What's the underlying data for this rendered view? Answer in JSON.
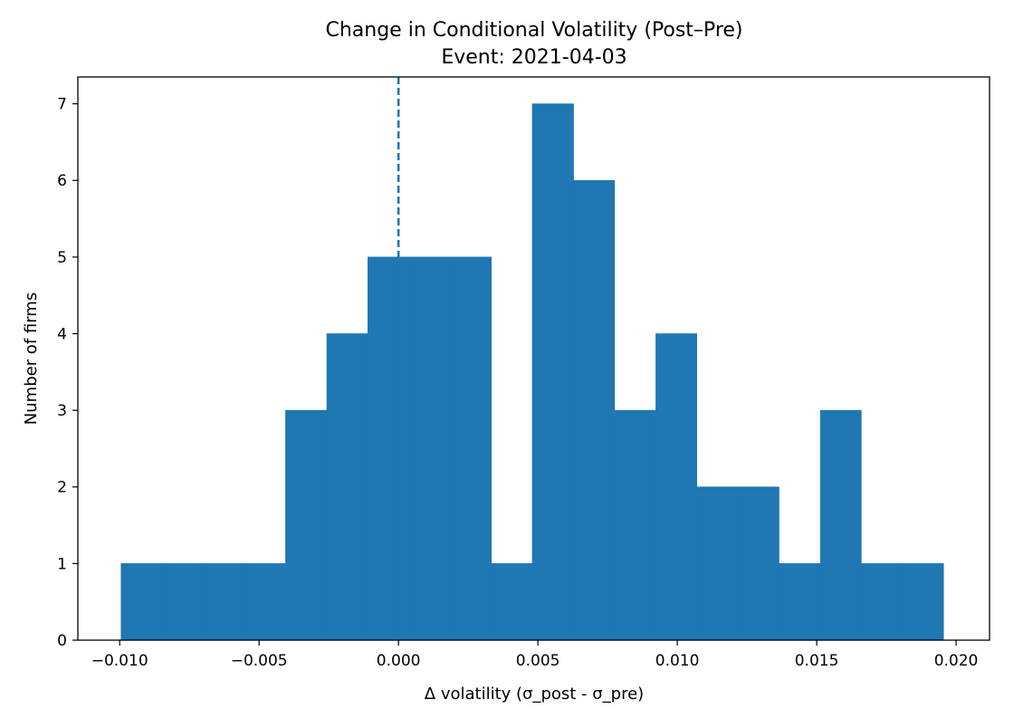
{
  "chart_data": {
    "type": "bar",
    "title": "Change in Conditional Volatility (Post–Pre)",
    "subtitle": "Event: 2021-04-03",
    "xlabel": "Δ volatility (σ_post - σ_pre)",
    "ylabel": "Number of firms",
    "xlim": [
      -0.0115,
      0.0212
    ],
    "ylim": [
      0,
      7.35
    ],
    "x_ticks": [
      -0.01,
      -0.005,
      0.0,
      0.005,
      0.01,
      0.015,
      0.02
    ],
    "x_tick_labels": [
      "−0.010",
      "−0.005",
      "0.000",
      "0.005",
      "0.010",
      "0.015",
      "0.020"
    ],
    "y_ticks": [
      0,
      1,
      2,
      3,
      4,
      5,
      6,
      7
    ],
    "y_tick_labels": [
      "0",
      "1",
      "2",
      "3",
      "4",
      "5",
      "6",
      "7"
    ],
    "bin_edges": [
      -0.00995,
      -0.00847,
      -0.007,
      -0.00552,
      -0.00405,
      -0.00257,
      -0.0011,
      0.00038,
      0.00185,
      0.00333,
      0.0048,
      0.00628,
      0.00775,
      0.00923,
      0.0107,
      0.01218,
      0.01365,
      0.01513,
      0.0166,
      0.01808,
      0.01955
    ],
    "counts": [
      1,
      1,
      1,
      1,
      3,
      4,
      5,
      5,
      5,
      1,
      7,
      6,
      3,
      4,
      2,
      2,
      1,
      3,
      1,
      1
    ],
    "bar_color": "#1f77b4",
    "reference_line": {
      "x": 0.0,
      "style": "dashed",
      "color": "#1f77b4"
    },
    "grid": false,
    "legend": "none"
  }
}
